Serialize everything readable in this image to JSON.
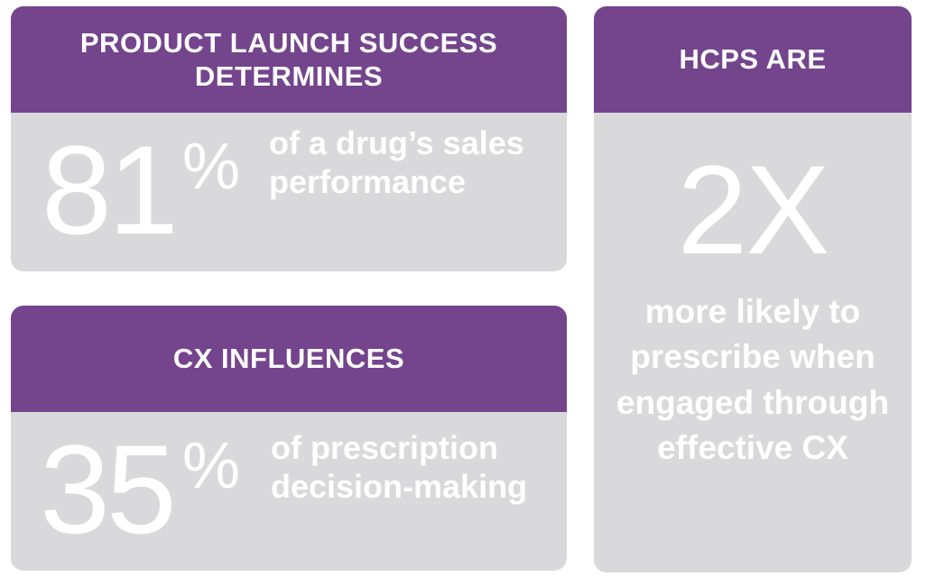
{
  "cards": {
    "launch": {
      "heading": "PRODUCT LAUNCH SUCCESS DETERMINES",
      "number": "81",
      "unit": "%",
      "description": "of a drug’s sales performance"
    },
    "cx": {
      "heading": "CX INFLUENCES",
      "number": "35",
      "unit": "%",
      "description": "of prescription decision-making"
    },
    "hcp": {
      "heading": "HCPS ARE",
      "number": "2X",
      "description": "more likely to prescribe when engaged through effective CX"
    }
  },
  "colors": {
    "header": "#74448c",
    "card": "#d9d9db",
    "text": "#ffffff"
  }
}
